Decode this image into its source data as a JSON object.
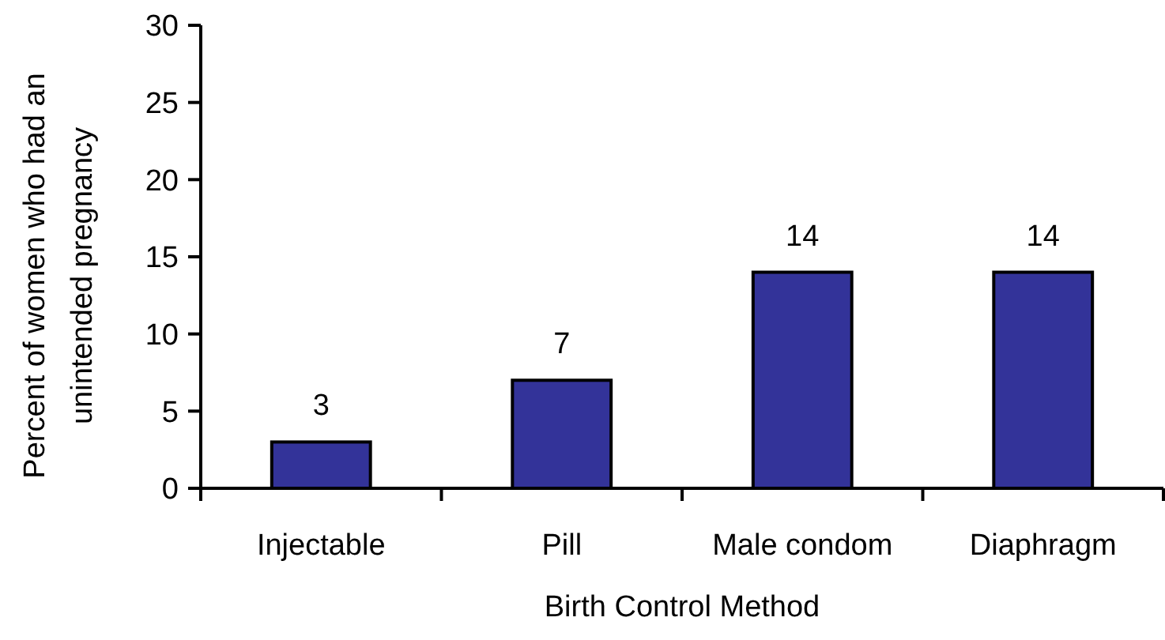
{
  "chart_data": {
    "type": "bar",
    "xlabel": "Birth Control Method",
    "ylabel": "Percent of women who had an unintended pregnancy",
    "categories": [
      "Injectable",
      "Pill",
      "Male condom",
      "Diaphragm"
    ],
    "values": [
      3,
      7,
      14,
      14
    ],
    "color": "#333399",
    "ylim": [
      0,
      30
    ],
    "yticks": [
      0,
      5,
      10,
      15,
      20,
      25,
      30
    ],
    "data_labels": true
  }
}
